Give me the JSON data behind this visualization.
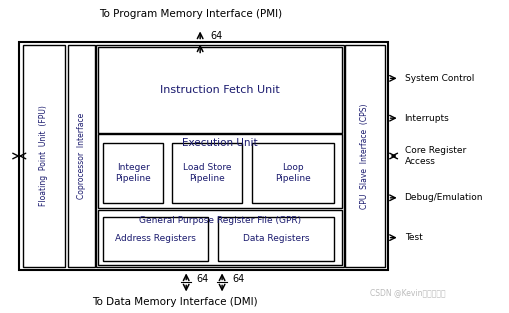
{
  "bg_color": "#ffffff",
  "fig_bg": "#ffffff",
  "text_color": "#1a1a6e",
  "title_top": "To Program Memory Interface (PMI)",
  "title_bottom": "To Data Memory Interface (DMI)",
  "watermark": "CSDN @Kevin的学习路途",
  "right_labels": [
    "System Control",
    "Interrupts",
    "Core Register\nAccess",
    "Debug/Emulation",
    "Test"
  ],
  "arrow_label_64": "64",
  "right_arrow_styles": [
    "<->",
    "<->",
    "<=>",
    "<->",
    "<->"
  ]
}
